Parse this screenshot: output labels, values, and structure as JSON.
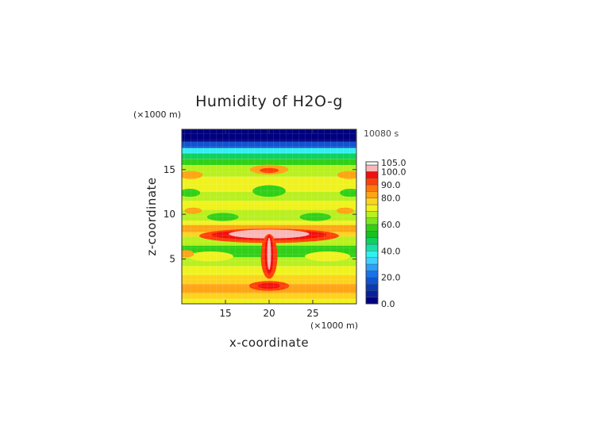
{
  "chart_data": {
    "type": "heatmap",
    "title": "Humidity of H2O-g",
    "time_label": "10080 s",
    "xlabel": "x-coordinate",
    "ylabel": "z-coordinate",
    "x_unit": "(×1000 m)",
    "y_unit": "(×1000 m)",
    "xlim": [
      10,
      30
    ],
    "ylim": [
      0,
      19.5
    ],
    "x_ticks": [
      15,
      20,
      25
    ],
    "y_ticks": [
      5,
      10,
      15
    ],
    "colorbar": {
      "levels": [
        0,
        5,
        10,
        15,
        20,
        25,
        30,
        35,
        40,
        45,
        50,
        55,
        60,
        65,
        70,
        75,
        80,
        85,
        90,
        95,
        100,
        105
      ],
      "tick_labels": [
        "105.0",
        "100.0",
        "90.0",
        "80.0",
        "60.0",
        "40.0",
        "20.0",
        "0.0"
      ],
      "tick_values": [
        105,
        100,
        90,
        80,
        60,
        40,
        20,
        0
      ],
      "colors": [
        "#00007f",
        "#0a1f9a",
        "#0a3ab4",
        "#1054cf",
        "#1a72e8",
        "#28a0ff",
        "#3ed0ff",
        "#31f0f0",
        "#18e0a8",
        "#10d060",
        "#18c020",
        "#30d018",
        "#7ae81c",
        "#b8f020",
        "#f0f21e",
        "#fcd41e",
        "#ffa414",
        "#ff780e",
        "#ff4008",
        "#f01010",
        "#f8b8b8"
      ]
    },
    "bands": [
      {
        "z": [
          18.1,
          19.5
        ],
        "value": 3
      },
      {
        "z": [
          17.4,
          18.1
        ],
        "value": 18
      },
      {
        "z": [
          16.8,
          17.4
        ],
        "value": 37
      },
      {
        "z": [
          16.2,
          16.8
        ],
        "value": 47
      },
      {
        "z": [
          15.5,
          16.2
        ],
        "value": 57
      },
      {
        "z": [
          14.2,
          15.5
        ],
        "value": 67
      },
      {
        "z": [
          12.5,
          14.2
        ],
        "value": 72
      },
      {
        "z": [
          11.5,
          12.5
        ],
        "value": 67
      },
      {
        "z": [
          10.5,
          11.5
        ],
        "value": 72
      },
      {
        "z": [
          9.3,
          10.5
        ],
        "value": 67
      },
      {
        "z": [
          8.8,
          9.3
        ],
        "value": 72
      },
      {
        "z": [
          8.0,
          8.8
        ],
        "value": 82
      },
      {
        "z": [
          7.5,
          8.0
        ],
        "value": 77
      },
      {
        "z": [
          6.5,
          7.5
        ],
        "value": 67
      },
      {
        "z": [
          5.2,
          6.5
        ],
        "value": 57
      },
      {
        "z": [
          4.2,
          5.2
        ],
        "value": 67
      },
      {
        "z": [
          3.2,
          4.2
        ],
        "value": 72
      },
      {
        "z": [
          2.2,
          3.2
        ],
        "value": 77
      },
      {
        "z": [
          1.2,
          2.2
        ],
        "value": 82
      },
      {
        "z": [
          0.5,
          1.2
        ],
        "value": 77
      },
      {
        "z": [
          0.0,
          0.5
        ],
        "value": 72
      }
    ],
    "blobs": [
      {
        "x": 20,
        "z": 15.0,
        "rx": 2.2,
        "rz": 0.55,
        "value": 82
      },
      {
        "x": 20,
        "z": 14.9,
        "rx": 1.1,
        "rz": 0.28,
        "value": 92
      },
      {
        "x": 11,
        "z": 14.4,
        "rx": 1.4,
        "rz": 0.45,
        "value": 82
      },
      {
        "x": 29.2,
        "z": 14.4,
        "rx": 1.4,
        "rz": 0.45,
        "value": 82
      },
      {
        "x": 20,
        "z": 12.6,
        "rx": 1.9,
        "rz": 0.65,
        "value": 57
      },
      {
        "x": 10.9,
        "z": 12.4,
        "rx": 1.2,
        "rz": 0.45,
        "value": 57
      },
      {
        "x": 29.3,
        "z": 12.4,
        "rx": 1.2,
        "rz": 0.45,
        "value": 57
      },
      {
        "x": 14.7,
        "z": 9.7,
        "rx": 1.8,
        "rz": 0.45,
        "value": 57
      },
      {
        "x": 25.3,
        "z": 9.7,
        "rx": 1.8,
        "rz": 0.45,
        "value": 57
      },
      {
        "x": 11.3,
        "z": 10.4,
        "rx": 1.0,
        "rz": 0.35,
        "value": 82
      },
      {
        "x": 28.7,
        "z": 10.4,
        "rx": 1.0,
        "rz": 0.35,
        "value": 82
      },
      {
        "x": 20,
        "z": 7.6,
        "rx": 8.0,
        "rz": 0.8,
        "value": 92
      },
      {
        "x": 20,
        "z": 7.7,
        "rx": 6.6,
        "rz": 0.55,
        "value": 97
      },
      {
        "x": 20,
        "z": 7.8,
        "rx": 4.6,
        "rz": 0.5,
        "value": 102
      },
      {
        "x": 20,
        "z": 5.3,
        "rx": 0.95,
        "rz": 2.5,
        "value": 92
      },
      {
        "x": 20,
        "z": 5.5,
        "rx": 0.5,
        "rz": 2.2,
        "value": 97
      },
      {
        "x": 20,
        "z": 5.6,
        "rx": 0.22,
        "rz": 1.8,
        "value": 102
      },
      {
        "x": 20,
        "z": 2.0,
        "rx": 2.3,
        "rz": 0.55,
        "value": 92
      },
      {
        "x": 20,
        "z": 2.0,
        "rx": 1.3,
        "rz": 0.3,
        "value": 97
      },
      {
        "x": 13.3,
        "z": 5.3,
        "rx": 2.6,
        "rz": 0.55,
        "value": 72
      },
      {
        "x": 26.7,
        "z": 5.3,
        "rx": 2.6,
        "rz": 0.55,
        "value": 72
      },
      {
        "x": 10.5,
        "z": 5.6,
        "rx": 0.9,
        "rz": 0.4,
        "value": 82
      }
    ]
  }
}
